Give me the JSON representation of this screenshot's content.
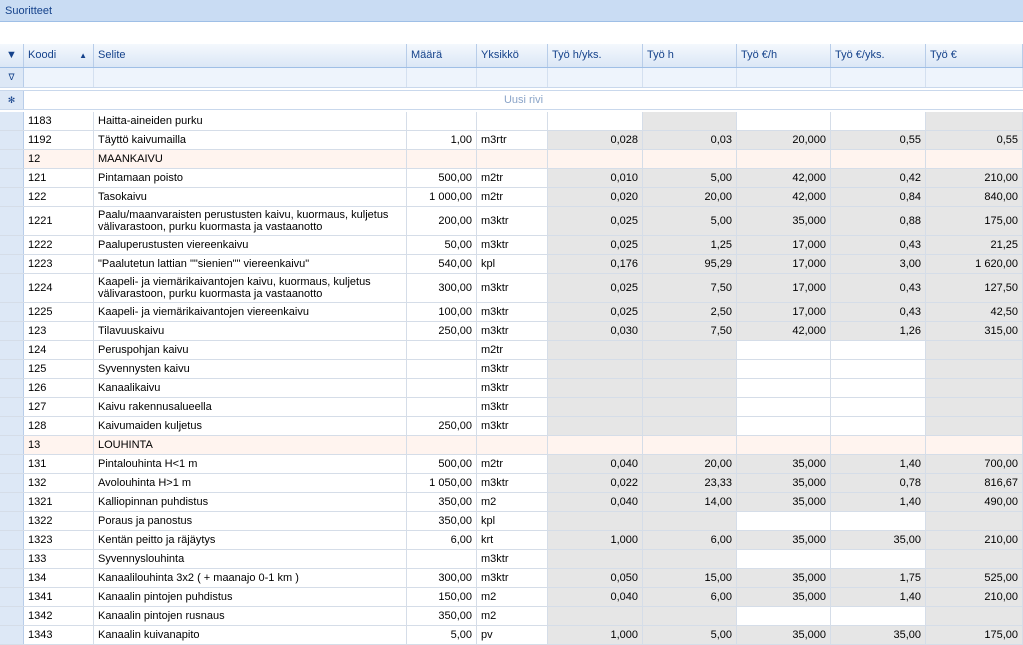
{
  "window": {
    "title": "Suoritteet"
  },
  "columns": [
    {
      "key": "koodi",
      "label": "Koodi"
    },
    {
      "key": "selite",
      "label": "Selite"
    },
    {
      "key": "maara",
      "label": "Määrä"
    },
    {
      "key": "yksikko",
      "label": "Yksikkö"
    },
    {
      "key": "tyo_h_yks",
      "label": "Työ h/yks."
    },
    {
      "key": "tyo_h",
      "label": "Työ h"
    },
    {
      "key": "tyo_eur_h",
      "label": "Työ €/h"
    },
    {
      "key": "tyo_eur_yks",
      "label": "Työ €/yks."
    },
    {
      "key": "tyo_eur",
      "label": "Työ €"
    }
  ],
  "new_row_label": "Uusi rivi",
  "rows": [
    {
      "koodi": "1183",
      "selite": "Haitta-aineiden purku",
      "maara": "",
      "yksikko": "",
      "tyo_h_yks": "",
      "tyo_h": "",
      "tyo_eur_h": "",
      "tyo_eur_yks": "",
      "tyo_eur": "",
      "h": 19,
      "shade": "partial"
    },
    {
      "koodi": "1192",
      "selite": "Täyttö kaivumailla",
      "maara": "1,00",
      "yksikko": "m3rtr",
      "tyo_h_yks": "0,028",
      "tyo_h": "0,03",
      "tyo_eur_h": "20,000",
      "tyo_eur_yks": "0,55",
      "tyo_eur": "0,55",
      "h": 19,
      "shade": "full"
    },
    {
      "koodi": "12",
      "selite": "MAANKAIVU",
      "maara": "",
      "yksikko": "",
      "tyo_h_yks": "",
      "tyo_h": "",
      "tyo_eur_h": "",
      "tyo_eur_yks": "",
      "tyo_eur": "",
      "h": 19,
      "shade": "group"
    },
    {
      "koodi": "121",
      "selite": "Pintamaan poisto",
      "maara": "500,00",
      "yksikko": "m2tr",
      "tyo_h_yks": "0,010",
      "tyo_h": "5,00",
      "tyo_eur_h": "42,000",
      "tyo_eur_yks": "0,42",
      "tyo_eur": "210,00",
      "h": 19,
      "shade": "full"
    },
    {
      "koodi": "122",
      "selite": "Tasokaivu",
      "maara": "1 000,00",
      "yksikko": "m2tr",
      "tyo_h_yks": "0,020",
      "tyo_h": "20,00",
      "tyo_eur_h": "42,000",
      "tyo_eur_yks": "0,84",
      "tyo_eur": "840,00",
      "h": 19,
      "shade": "full"
    },
    {
      "koodi": "1221",
      "selite": "Paalu/maanvaraisten perustusten kaivu, kuormaus, kuljetus välivarastoon, purku kuormasta ja vastaanotto",
      "maara": "200,00",
      "yksikko": "m3ktr",
      "tyo_h_yks": "0,025",
      "tyo_h": "5,00",
      "tyo_eur_h": "35,000",
      "tyo_eur_yks": "0,88",
      "tyo_eur": "175,00",
      "h": 29,
      "shade": "full"
    },
    {
      "koodi": "1222",
      "selite": "Paaluperustusten viereenkaivu",
      "maara": "50,00",
      "yksikko": "m3ktr",
      "tyo_h_yks": "0,025",
      "tyo_h": "1,25",
      "tyo_eur_h": "17,000",
      "tyo_eur_yks": "0,43",
      "tyo_eur": "21,25",
      "h": 19,
      "shade": "full"
    },
    {
      "koodi": "1223",
      "selite": "\"Paalutetun lattian \"\"sienien\"\" viereenkaivu\"",
      "maara": "540,00",
      "yksikko": "kpl",
      "tyo_h_yks": "0,176",
      "tyo_h": "95,29",
      "tyo_eur_h": "17,000",
      "tyo_eur_yks": "3,00",
      "tyo_eur": "1 620,00",
      "h": 19,
      "shade": "full"
    },
    {
      "koodi": "1224",
      "selite": "Kaapeli- ja viemärikaivantojen kaivu, kuormaus, kuljetus välivarastoon, purku kuormasta ja vastaanotto",
      "maara": "300,00",
      "yksikko": "m3ktr",
      "tyo_h_yks": "0,025",
      "tyo_h": "7,50",
      "tyo_eur_h": "17,000",
      "tyo_eur_yks": "0,43",
      "tyo_eur": "127,50",
      "h": 29,
      "shade": "full"
    },
    {
      "koodi": "1225",
      "selite": "Kaapeli- ja viemärikaivantojen viereenkaivu",
      "maara": "100,00",
      "yksikko": "m3ktr",
      "tyo_h_yks": "0,025",
      "tyo_h": "2,50",
      "tyo_eur_h": "17,000",
      "tyo_eur_yks": "0,43",
      "tyo_eur": "42,50",
      "h": 19,
      "shade": "full"
    },
    {
      "koodi": "123",
      "selite": "Tilavuuskaivu",
      "maara": "250,00",
      "yksikko": "m3ktr",
      "tyo_h_yks": "0,030",
      "tyo_h": "7,50",
      "tyo_eur_h": "42,000",
      "tyo_eur_yks": "1,26",
      "tyo_eur": "315,00",
      "h": 19,
      "shade": "full"
    },
    {
      "koodi": "124",
      "selite": "Peruspohjan kaivu",
      "maara": "",
      "yksikko": "m2tr",
      "tyo_h_yks": "",
      "tyo_h": "",
      "tyo_eur_h": "",
      "tyo_eur_yks": "",
      "tyo_eur": "",
      "h": 19,
      "shade": "partial"
    },
    {
      "koodi": "125",
      "selite": "Syvennysten kaivu",
      "maara": "",
      "yksikko": "m3ktr",
      "tyo_h_yks": "",
      "tyo_h": "",
      "tyo_eur_h": "",
      "tyo_eur_yks": "",
      "tyo_eur": "",
      "h": 19,
      "shade": "partial"
    },
    {
      "koodi": "126",
      "selite": "Kanaalikaivu",
      "maara": "",
      "yksikko": "m3ktr",
      "tyo_h_yks": "",
      "tyo_h": "",
      "tyo_eur_h": "",
      "tyo_eur_yks": "",
      "tyo_eur": "",
      "h": 19,
      "shade": "partial"
    },
    {
      "koodi": "127",
      "selite": "Kaivu rakennusalueella",
      "maara": "",
      "yksikko": "m3ktr",
      "tyo_h_yks": "",
      "tyo_h": "",
      "tyo_eur_h": "",
      "tyo_eur_yks": "",
      "tyo_eur": "",
      "h": 19,
      "shade": "partial"
    },
    {
      "koodi": "128",
      "selite": "Kaivumaiden kuljetus",
      "maara": "250,00",
      "yksikko": "m3ktr",
      "tyo_h_yks": "",
      "tyo_h": "",
      "tyo_eur_h": "",
      "tyo_eur_yks": "",
      "tyo_eur": "",
      "h": 19,
      "shade": "partial"
    },
    {
      "koodi": "13",
      "selite": "LOUHINTA",
      "maara": "",
      "yksikko": "",
      "tyo_h_yks": "",
      "tyo_h": "",
      "tyo_eur_h": "",
      "tyo_eur_yks": "",
      "tyo_eur": "",
      "h": 19,
      "shade": "group"
    },
    {
      "koodi": "131",
      "selite": "Pintalouhinta H<1 m",
      "maara": "500,00",
      "yksikko": "m2tr",
      "tyo_h_yks": "0,040",
      "tyo_h": "20,00",
      "tyo_eur_h": "35,000",
      "tyo_eur_yks": "1,40",
      "tyo_eur": "700,00",
      "h": 19,
      "shade": "full"
    },
    {
      "koodi": "132",
      "selite": "Avolouhinta H>1 m",
      "maara": "1 050,00",
      "yksikko": "m3ktr",
      "tyo_h_yks": "0,022",
      "tyo_h": "23,33",
      "tyo_eur_h": "35,000",
      "tyo_eur_yks": "0,78",
      "tyo_eur": "816,67",
      "h": 19,
      "shade": "full"
    },
    {
      "koodi": "1321",
      "selite": "Kalliopinnan puhdistus",
      "maara": "350,00",
      "yksikko": "m2",
      "tyo_h_yks": "0,040",
      "tyo_h": "14,00",
      "tyo_eur_h": "35,000",
      "tyo_eur_yks": "1,40",
      "tyo_eur": "490,00",
      "h": 19,
      "shade": "full"
    },
    {
      "koodi": "1322",
      "selite": "Poraus ja panostus",
      "maara": "350,00",
      "yksikko": "kpl",
      "tyo_h_yks": "",
      "tyo_h": "",
      "tyo_eur_h": "",
      "tyo_eur_yks": "",
      "tyo_eur": "",
      "h": 19,
      "shade": "partial"
    },
    {
      "koodi": "1323",
      "selite": "Kentän peitto ja räjäytys",
      "maara": "6,00",
      "yksikko": "krt",
      "tyo_h_yks": "1,000",
      "tyo_h": "6,00",
      "tyo_eur_h": "35,000",
      "tyo_eur_yks": "35,00",
      "tyo_eur": "210,00",
      "h": 19,
      "shade": "full"
    },
    {
      "koodi": "133",
      "selite": "Syvennyslouhinta",
      "maara": "",
      "yksikko": "m3ktr",
      "tyo_h_yks": "",
      "tyo_h": "",
      "tyo_eur_h": "",
      "tyo_eur_yks": "",
      "tyo_eur": "",
      "h": 19,
      "shade": "partial"
    },
    {
      "koodi": "134",
      "selite": "Kanaalilouhinta 3x2 ( + maanajo 0-1 km )",
      "maara": "300,00",
      "yksikko": "m3ktr",
      "tyo_h_yks": "0,050",
      "tyo_h": "15,00",
      "tyo_eur_h": "35,000",
      "tyo_eur_yks": "1,75",
      "tyo_eur": "525,00",
      "h": 19,
      "shade": "full"
    },
    {
      "koodi": "1341",
      "selite": "Kanaalin pintojen puhdistus",
      "maara": "150,00",
      "yksikko": "m2",
      "tyo_h_yks": "0,040",
      "tyo_h": "6,00",
      "tyo_eur_h": "35,000",
      "tyo_eur_yks": "1,40",
      "tyo_eur": "210,00",
      "h": 19,
      "shade": "full"
    },
    {
      "koodi": "1342",
      "selite": "Kanaalin pintojen rusnaus",
      "maara": "350,00",
      "yksikko": "m2",
      "tyo_h_yks": "",
      "tyo_h": "",
      "tyo_eur_h": "",
      "tyo_eur_yks": "",
      "tyo_eur": "",
      "h": 19,
      "shade": "partial"
    },
    {
      "koodi": "1343",
      "selite": "Kanaalin kuivanapito",
      "maara": "5,00",
      "yksikko": "pv",
      "tyo_h_yks": "1,000",
      "tyo_h": "5,00",
      "tyo_eur_h": "35,000",
      "tyo_eur_yks": "35,00",
      "tyo_eur": "175,00",
      "h": 19,
      "shade": "full"
    }
  ]
}
